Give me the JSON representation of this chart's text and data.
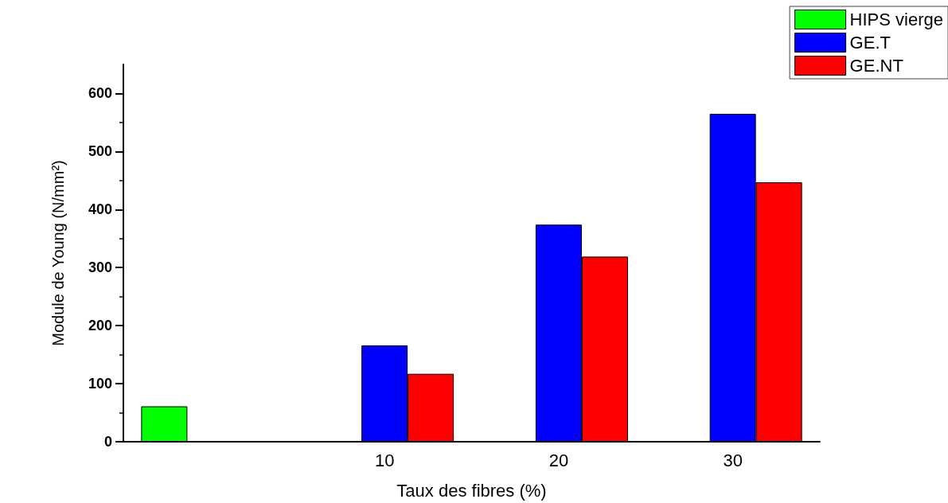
{
  "chart_data": {
    "type": "bar",
    "xlabel": "Taux des fibres (%)",
    "ylabel": "Module de Young (N/mm²)",
    "categories": [
      null,
      "10",
      "20",
      "30"
    ],
    "series": [
      {
        "name": "HIPS vierge",
        "color": "#00ff00",
        "values": [
          61,
          null,
          null,
          null
        ]
      },
      {
        "name": "GE.T",
        "color": "#0000ff",
        "values": [
          null,
          166,
          374,
          565
        ]
      },
      {
        "name": "GE.NT",
        "color": "#ff0000",
        "values": [
          null,
          117,
          319,
          447
        ]
      }
    ],
    "ylim": [
      0,
      650
    ],
    "yticks": [
      0,
      100,
      200,
      300,
      400,
      500,
      600
    ],
    "grid": false,
    "legend": "top right"
  }
}
